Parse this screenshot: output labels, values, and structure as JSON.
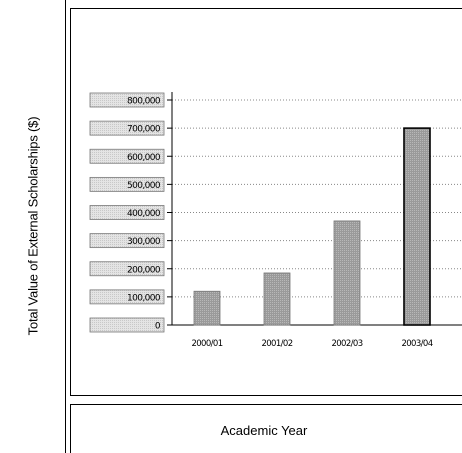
{
  "chart_data": {
    "type": "bar",
    "title": "",
    "xlabel": "Academic Year",
    "ylabel": "Total Value of External Scholarships ($)",
    "categories": [
      "2000/01",
      "2001/02",
      "2002/03",
      "2003/04"
    ],
    "values": [
      120000,
      185000,
      370000,
      700000
    ],
    "ylim": [
      0,
      800000
    ],
    "yticks": [
      0,
      100000,
      200000,
      300000,
      400000,
      500000,
      600000,
      700000,
      800000
    ],
    "ytick_labels": [
      "0",
      "100,000",
      "200,000",
      "300,000",
      "400,000",
      "500,000",
      "600,000",
      "700,000",
      "800,000"
    ],
    "grid": "horizontal dotted",
    "legend": "none",
    "bar_color": "#999999",
    "highlighted_bar_index": 3
  }
}
